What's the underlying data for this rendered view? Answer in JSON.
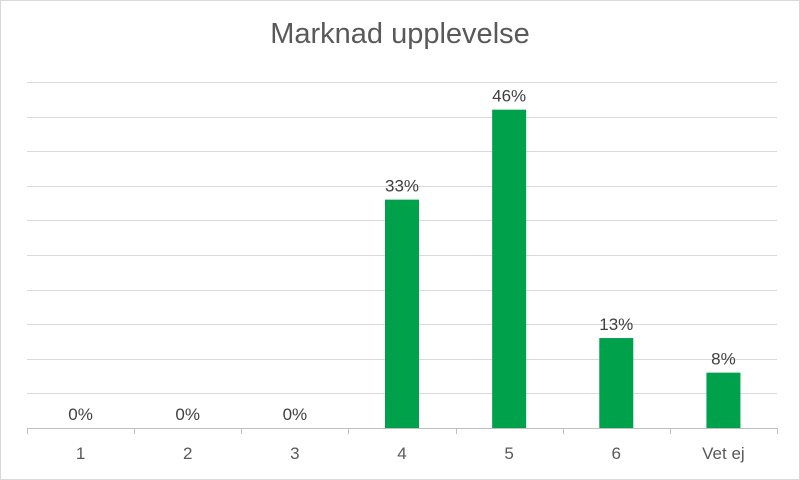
{
  "chart_data": {
    "type": "bar",
    "title": "Marknad upplevelse",
    "xlabel": "",
    "ylabel": "",
    "categories": [
      "1",
      "2",
      "3",
      "4",
      "5",
      "6",
      "Vet ej"
    ],
    "values": [
      0,
      0,
      0,
      33,
      46,
      13,
      8
    ],
    "data_labels": [
      "0%",
      "0%",
      "0%",
      "33%",
      "46%",
      "13%",
      "8%"
    ],
    "ylim": [
      0,
      50
    ],
    "grid": true,
    "legend": "none",
    "bar_color": "#00a14b"
  }
}
